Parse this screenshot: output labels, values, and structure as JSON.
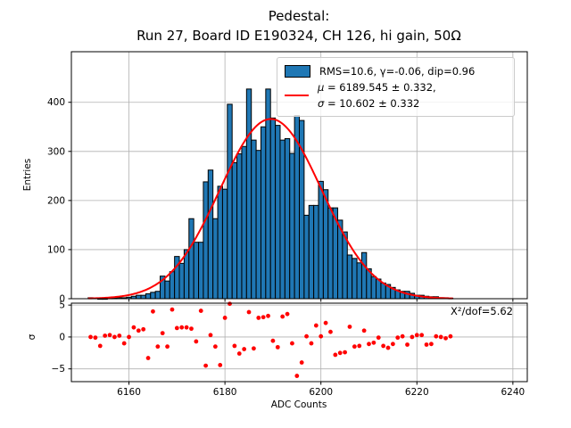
{
  "chart_data": {
    "type": "bar",
    "subtype": "histogram-with-gaussian-fit-and-residuals",
    "title_line1": "Pedestal:",
    "title_line2": "Run 27, Board ID E190324, CH 126, hi gain, 50Ω",
    "xlabel": "ADC Counts",
    "xlim": [
      6148,
      6243
    ],
    "xticks": [
      6160,
      6180,
      6200,
      6220,
      6240
    ],
    "grid": true,
    "colors": {
      "bar_fill": "#1f77b4",
      "bar_edge": "#000000",
      "fit_line": "#ff0000",
      "residual_points": "#ff0000",
      "gridline": "#b0b0b0",
      "spine": "#000000"
    },
    "main": {
      "ylabel": "Entries",
      "ylim": [
        0,
        503
      ],
      "yticks": [
        0,
        100,
        200,
        300,
        400
      ],
      "bin_width": 1,
      "first_bin_center": 6152,
      "counts": [
        2,
        1,
        0,
        0,
        1,
        1,
        2,
        2,
        3,
        5,
        7,
        7,
        10,
        13,
        15,
        46,
        36,
        55,
        86,
        72,
        100,
        163,
        115,
        115,
        238,
        262,
        163,
        229,
        223,
        396,
        277,
        295,
        310,
        427,
        323,
        302,
        350,
        427,
        368,
        353,
        323,
        326,
        296,
        373,
        363,
        170,
        190,
        190,
        239,
        222,
        185,
        185,
        160,
        136,
        89,
        82,
        73,
        94,
        61,
        45,
        40,
        32,
        29,
        23,
        18,
        15,
        15,
        11,
        7,
        7,
        5,
        4,
        4,
        2,
        2,
        1
      ],
      "fit": {
        "shape": "gaussian",
        "amplitude": 366,
        "mu": 6189.545,
        "sigma": 10.602,
        "x_range": [
          6151.5,
          6227.5
        ]
      }
    },
    "residuals": {
      "ylabel": "σ",
      "ylim": [
        -7.0,
        5.3
      ],
      "yticks": [
        -5,
        0,
        5
      ],
      "first_x": 6152,
      "values": [
        0.0,
        -0.1,
        -1.4,
        0.2,
        0.3,
        0.0,
        0.2,
        -1.0,
        0.0,
        1.5,
        1.0,
        1.2,
        -3.3,
        4.0,
        -1.5,
        0.6,
        -1.5,
        4.3,
        1.4,
        1.5,
        1.5,
        1.3,
        -0.7,
        4.1,
        -4.5,
        0.3,
        -1.5,
        -4.4,
        3.0,
        5.2,
        -1.4,
        -2.6,
        -1.9,
        3.9,
        -1.8,
        3.0,
        3.1,
        3.3,
        -0.6,
        -1.6,
        3.2,
        3.6,
        -1.0,
        -6.1,
        -4.0,
        0.1,
        -1.0,
        1.8,
        0.1,
        2.2,
        0.8,
        -2.8,
        -2.5,
        -2.4,
        1.6,
        -1.5,
        -1.4,
        1.0,
        -1.1,
        -0.9,
        -0.1,
        -1.4,
        -1.7,
        -1.1,
        -0.1,
        0.1,
        -1.2,
        0.0,
        0.3,
        0.3,
        -1.2,
        -1.1,
        0.1,
        0.0,
        -0.2,
        0.1
      ],
      "annotation": "X²/dof=5.62"
    },
    "legend": {
      "row1_label": "RMS=10.6, γ=-0.06, dip=0.96",
      "row2_symbol": "μ",
      "row2_text": " = 6189.545 ± 0.332,",
      "row3_symbol": "σ",
      "row3_text": " = 10.602 ± 0.332"
    }
  }
}
